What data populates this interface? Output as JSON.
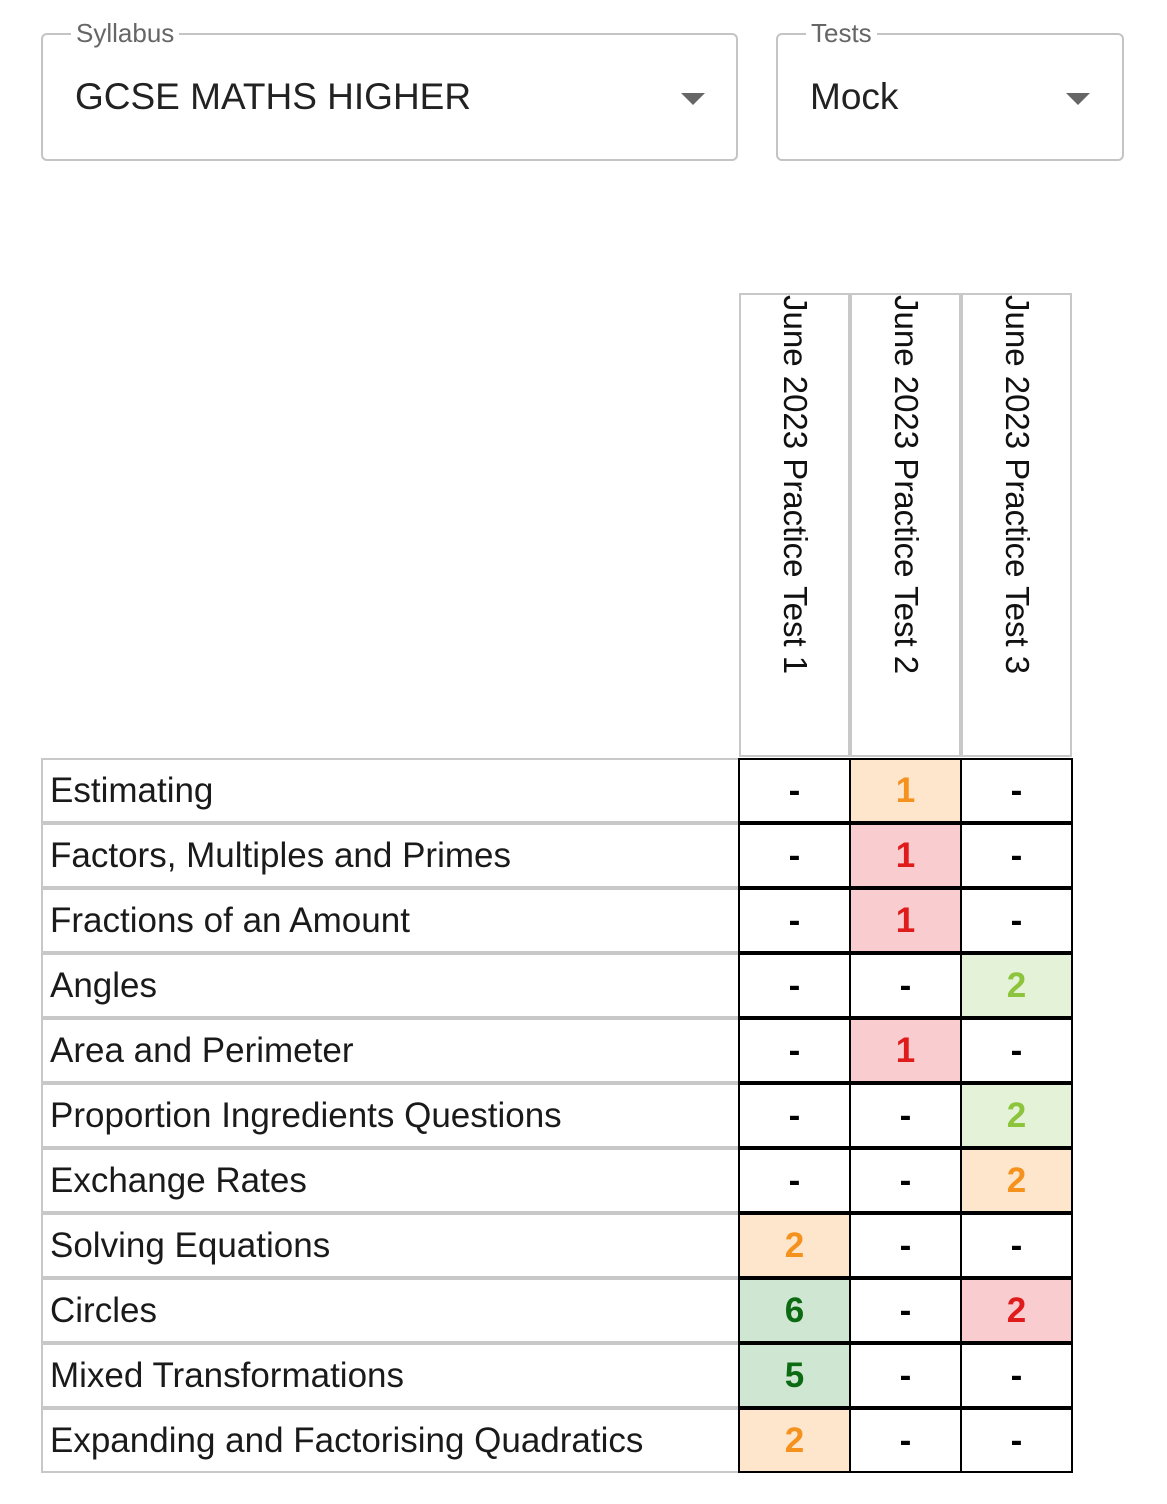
{
  "filters": {
    "syllabus": {
      "label": "Syllabus",
      "value": "GCSE MATHS HIGHER"
    },
    "tests": {
      "label": "Tests",
      "value": "Mock"
    }
  },
  "columns": [
    "June 2023 Practice Test 1",
    "June 2023 Practice Test 2",
    "June 2023 Practice Test 3"
  ],
  "rows": [
    {
      "topic": "Estimating",
      "cells": [
        {
          "value": "-",
          "level": "none"
        },
        {
          "value": "1",
          "level": "orange"
        },
        {
          "value": "-",
          "level": "none"
        }
      ]
    },
    {
      "topic": "Factors, Multiples and Primes",
      "cells": [
        {
          "value": "-",
          "level": "none"
        },
        {
          "value": "1",
          "level": "red"
        },
        {
          "value": "-",
          "level": "none"
        }
      ]
    },
    {
      "topic": "Fractions of an Amount",
      "cells": [
        {
          "value": "-",
          "level": "none"
        },
        {
          "value": "1",
          "level": "red"
        },
        {
          "value": "-",
          "level": "none"
        }
      ]
    },
    {
      "topic": "Angles",
      "cells": [
        {
          "value": "-",
          "level": "none"
        },
        {
          "value": "-",
          "level": "none"
        },
        {
          "value": "2",
          "level": "lightgreen"
        }
      ]
    },
    {
      "topic": "Area and Perimeter",
      "cells": [
        {
          "value": "-",
          "level": "none"
        },
        {
          "value": "1",
          "level": "red"
        },
        {
          "value": "-",
          "level": "none"
        }
      ]
    },
    {
      "topic": "Proportion Ingredients Questions",
      "cells": [
        {
          "value": "-",
          "level": "none"
        },
        {
          "value": "-",
          "level": "none"
        },
        {
          "value": "2",
          "level": "lightgreen"
        }
      ]
    },
    {
      "topic": "Exchange Rates",
      "cells": [
        {
          "value": "-",
          "level": "none"
        },
        {
          "value": "-",
          "level": "none"
        },
        {
          "value": "2",
          "level": "orange"
        }
      ]
    },
    {
      "topic": "Solving Equations",
      "cells": [
        {
          "value": "2",
          "level": "orange"
        },
        {
          "value": "-",
          "level": "none"
        },
        {
          "value": "-",
          "level": "none"
        }
      ]
    },
    {
      "topic": "Circles",
      "cells": [
        {
          "value": "6",
          "level": "darkgreen"
        },
        {
          "value": "-",
          "level": "none"
        },
        {
          "value": "2",
          "level": "red"
        }
      ]
    },
    {
      "topic": "Mixed Transformations",
      "cells": [
        {
          "value": "5",
          "level": "darkgreen"
        },
        {
          "value": "-",
          "level": "none"
        },
        {
          "value": "-",
          "level": "none"
        }
      ]
    },
    {
      "topic": "Expanding and Factorising Quadratics",
      "cells": [
        {
          "value": "2",
          "level": "orange"
        },
        {
          "value": "-",
          "level": "none"
        },
        {
          "value": "-",
          "level": "none"
        }
      ]
    }
  ]
}
